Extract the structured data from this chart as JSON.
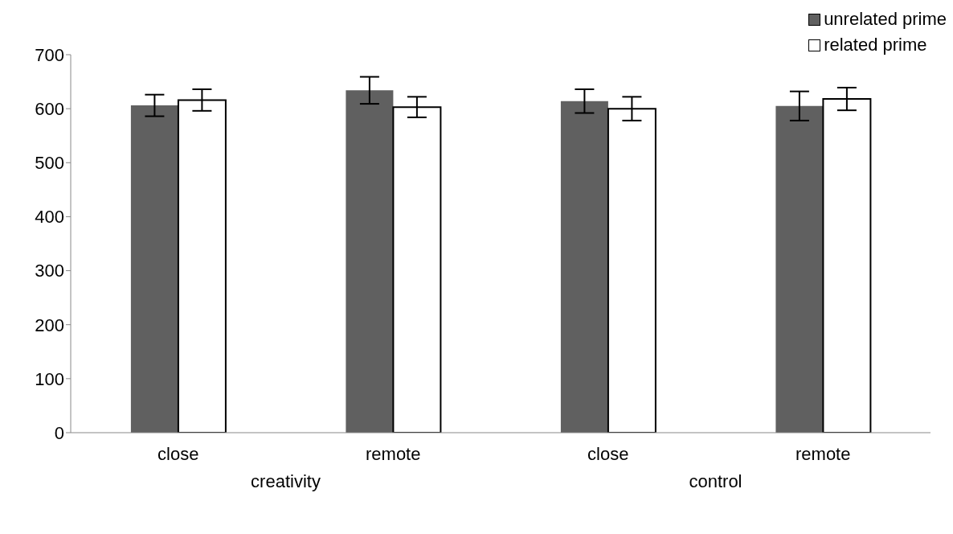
{
  "chart_data": {
    "type": "bar",
    "categories": [
      "close",
      "remote",
      "close",
      "remote"
    ],
    "series": [
      {
        "name": "unrelated prime",
        "color": "#606060",
        "values": [
          606,
          634,
          614,
          605
        ],
        "errors": [
          20,
          25,
          22,
          27
        ]
      },
      {
        "name": "related prime",
        "color": "#ffffff",
        "values": [
          616,
          603,
          600,
          618
        ],
        "errors": [
          20,
          19,
          22,
          21
        ]
      }
    ],
    "annotations": [
      "creativity",
      "control"
    ],
    "ylim": [
      0,
      700
    ],
    "yticks": [
      0,
      100,
      200,
      300,
      400,
      500,
      600,
      700
    ],
    "grid": false,
    "legend": "top right"
  }
}
